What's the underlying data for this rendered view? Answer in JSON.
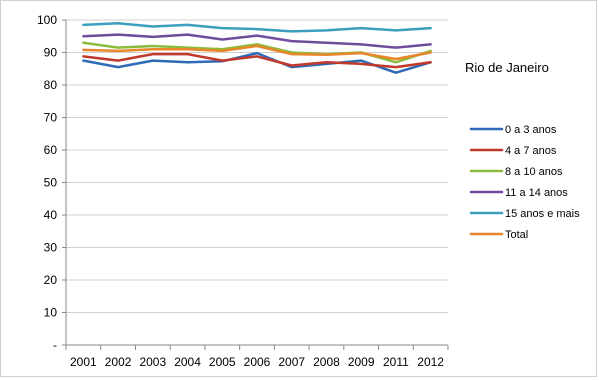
{
  "chart_data": {
    "type": "line",
    "title": "Rio de Janeiro",
    "xlabel": "",
    "ylabel": "",
    "categories": [
      "2001",
      "2002",
      "2003",
      "2004",
      "2005",
      "2006",
      "2007",
      "2008",
      "2009",
      "2011",
      "2012"
    ],
    "ylim": [
      0,
      100
    ],
    "yticks": [
      "-",
      "10",
      "20",
      "30",
      "40",
      "50",
      "60",
      "70",
      "80",
      "90",
      "100"
    ],
    "grid": true,
    "legend_position": "right",
    "series": [
      {
        "name": "0 a 3 anos",
        "color": "#2e6ab6",
        "values": [
          87.5,
          85.5,
          87.5,
          87.0,
          87.3,
          89.8,
          85.5,
          86.5,
          87.5,
          83.8,
          87.0
        ]
      },
      {
        "name": "4 a 7 anos",
        "color": "#c0392b",
        "values": [
          88.8,
          87.5,
          89.5,
          89.5,
          87.5,
          88.8,
          86.0,
          87.0,
          86.5,
          85.5,
          87.0
        ]
      },
      {
        "name": "8 a 10 anos",
        "color": "#8cba3c",
        "values": [
          93.0,
          91.5,
          92.0,
          91.5,
          91.0,
          92.5,
          90.0,
          89.5,
          90.0,
          87.0,
          90.5
        ]
      },
      {
        "name": "11 a 14 anos",
        "color": "#6f4d9c",
        "values": [
          95.0,
          95.5,
          94.8,
          95.5,
          94.0,
          95.2,
          93.5,
          93.0,
          92.5,
          91.5,
          92.5
        ]
      },
      {
        "name": "15 anos e mais",
        "color": "#3c9fbf",
        "values": [
          98.5,
          99.0,
          98.0,
          98.5,
          97.5,
          97.2,
          96.5,
          96.8,
          97.5,
          96.8,
          97.5
        ]
      },
      {
        "name": "Total",
        "color": "#e8862a",
        "values": [
          90.8,
          90.5,
          91.0,
          91.0,
          90.5,
          92.0,
          89.5,
          89.3,
          89.8,
          88.0,
          90.0
        ]
      }
    ]
  }
}
